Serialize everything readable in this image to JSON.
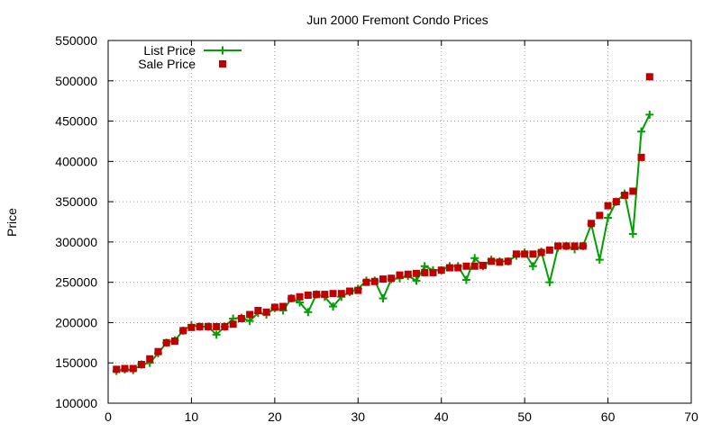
{
  "chart_data": {
    "type": "scatter",
    "title": "Jun 2000 Fremont Condo Prices",
    "xlabel": "",
    "ylabel": "Price",
    "xlim": [
      0,
      70
    ],
    "ylim": [
      100000,
      550000
    ],
    "xticks": [
      0,
      10,
      20,
      30,
      40,
      50,
      60,
      70
    ],
    "yticks": [
      100000,
      150000,
      200000,
      250000,
      300000,
      350000,
      400000,
      450000,
      500000,
      550000
    ],
    "grid": true,
    "legend": "top-left",
    "x": [
      1,
      2,
      3,
      4,
      5,
      6,
      7,
      8,
      9,
      10,
      11,
      12,
      13,
      14,
      15,
      16,
      17,
      18,
      19,
      20,
      21,
      22,
      23,
      24,
      25,
      26,
      27,
      28,
      29,
      30,
      31,
      32,
      33,
      34,
      35,
      36,
      37,
      38,
      39,
      40,
      41,
      42,
      43,
      44,
      45,
      46,
      47,
      48,
      49,
      50,
      51,
      52,
      53,
      54,
      55,
      56,
      57,
      58,
      59,
      60,
      61,
      62,
      63,
      64,
      65
    ],
    "series": [
      {
        "name": "List Price",
        "style": "linespoints",
        "color": "#00a000",
        "marker": "plus",
        "values": [
          140000,
          142000,
          141000,
          148000,
          150000,
          162000,
          175000,
          178000,
          190000,
          197000,
          195000,
          195000,
          185000,
          195000,
          205000,
          206000,
          202000,
          212000,
          210000,
          218000,
          215000,
          230000,
          225000,
          213000,
          235000,
          232000,
          220000,
          232000,
          238000,
          242000,
          252000,
          252000,
          230000,
          254000,
          255000,
          258000,
          252000,
          270000,
          265000,
          265000,
          270000,
          270000,
          253000,
          280000,
          270000,
          278000,
          276000,
          276000,
          283000,
          287000,
          270000,
          288000,
          250000,
          293000,
          295000,
          291000,
          295000,
          322000,
          278000,
          330000,
          350000,
          360000,
          310000,
          437000,
          458000
        ]
      },
      {
        "name": "Sale Price",
        "style": "points",
        "color": "#c00000",
        "marker": "square",
        "values": [
          142000,
          143000,
          143000,
          148000,
          155000,
          164000,
          175000,
          177000,
          190000,
          194000,
          195000,
          195000,
          195000,
          195000,
          198000,
          205000,
          210000,
          215000,
          213000,
          219000,
          220000,
          230000,
          232000,
          234000,
          235000,
          235000,
          236000,
          236000,
          239000,
          240000,
          250000,
          251000,
          254000,
          255000,
          259000,
          260000,
          261000,
          262000,
          262000,
          265000,
          268000,
          268000,
          270000,
          270000,
          271000,
          276000,
          275000,
          276000,
          285000,
          285000,
          285000,
          287000,
          290000,
          295000,
          295000,
          295000,
          295000,
          323000,
          333000,
          345000,
          350000,
          358000,
          363000,
          405000,
          505000
        ]
      }
    ]
  }
}
